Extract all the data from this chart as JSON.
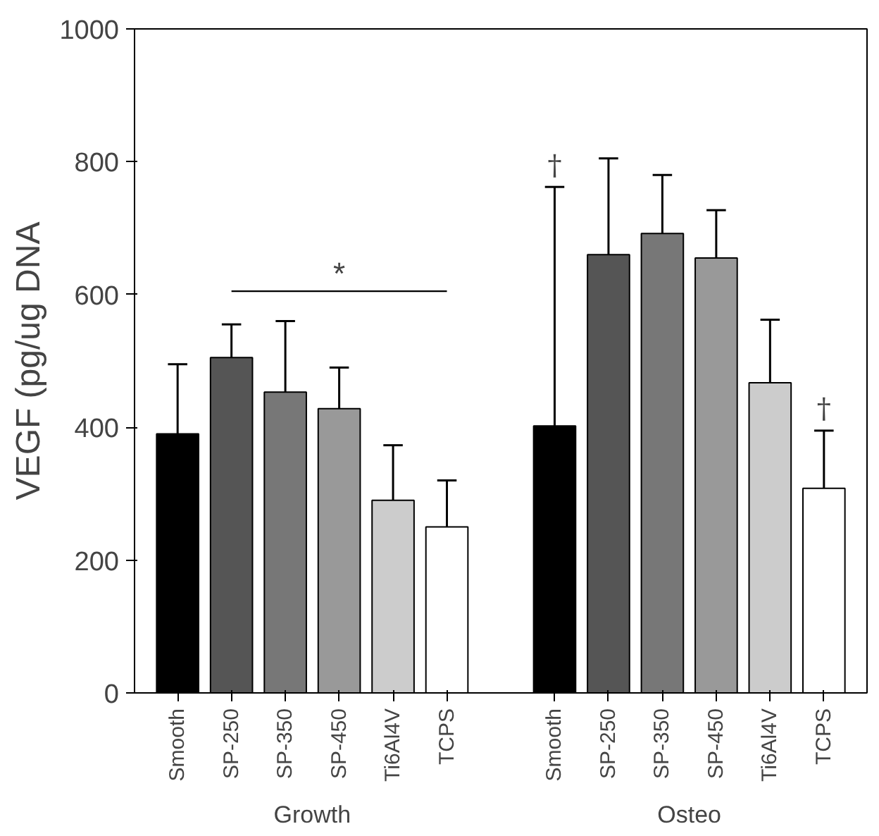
{
  "chart_data": {
    "type": "bar",
    "ylabel": "VEGF (pg/ug DNA",
    "categories": [
      "Smooth",
      "SP-250",
      "SP-350",
      "SP-450",
      "Ti6Al4V",
      "TCPS",
      "Smooth",
      "SP-250",
      "SP-350",
      "SP-450",
      "Ti6Al4V",
      "TCPS"
    ],
    "values": [
      390,
      505,
      453,
      428,
      290,
      250,
      402,
      660,
      692,
      655,
      467,
      308
    ],
    "colors": [
      "#000000",
      "#555555",
      "#777777",
      "#999999",
      "#cccccc",
      "#ffffff",
      "#000000",
      "#555555",
      "#777777",
      "#999999",
      "#cccccc",
      "#ffffff"
    ],
    "errors": [
      [
        390,
        495
      ],
      [
        505,
        555
      ],
      [
        453,
        560
      ],
      [
        428,
        490
      ],
      [
        290,
        373
      ],
      [
        250,
        320
      ],
      [
        402,
        762
      ],
      [
        660,
        805
      ],
      [
        692,
        780
      ],
      [
        655,
        727
      ],
      [
        467,
        562
      ],
      [
        308,
        395
      ]
    ],
    "ylim": [
      0,
      1000
    ],
    "yticks": [
      0,
      200,
      400,
      600,
      800,
      1000
    ],
    "grid": false,
    "annotations": [
      "*",
      "†",
      "†",
      "Growth",
      "Osteo"
    ]
  }
}
